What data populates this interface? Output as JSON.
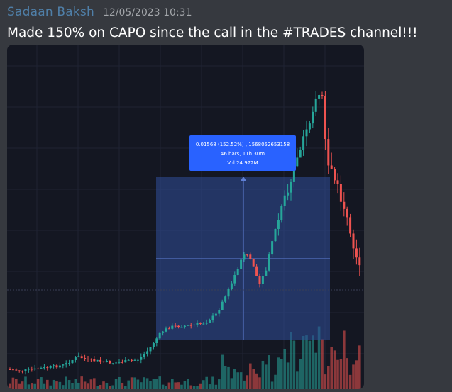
{
  "message": {
    "author": "Sadaan Baksh",
    "timestamp": "12/05/2023 10:31",
    "text": "Made 150% on CAPO since the call in the #TRADES channel!!!"
  },
  "colors": {
    "author": "#4f7fa8",
    "background": "#36393f",
    "chart_bg": "#141722",
    "up": "#26a69a",
    "down": "#ef5350",
    "measure_box": "#2f4e9b",
    "tooltip": "#2962ff"
  },
  "chart": {
    "tooltip": {
      "line1": "0.01568 (152.52%) , 1568052653158",
      "line2": "46 bars, 11h 30m",
      "line3": "Vol 24.972M"
    }
  }
}
